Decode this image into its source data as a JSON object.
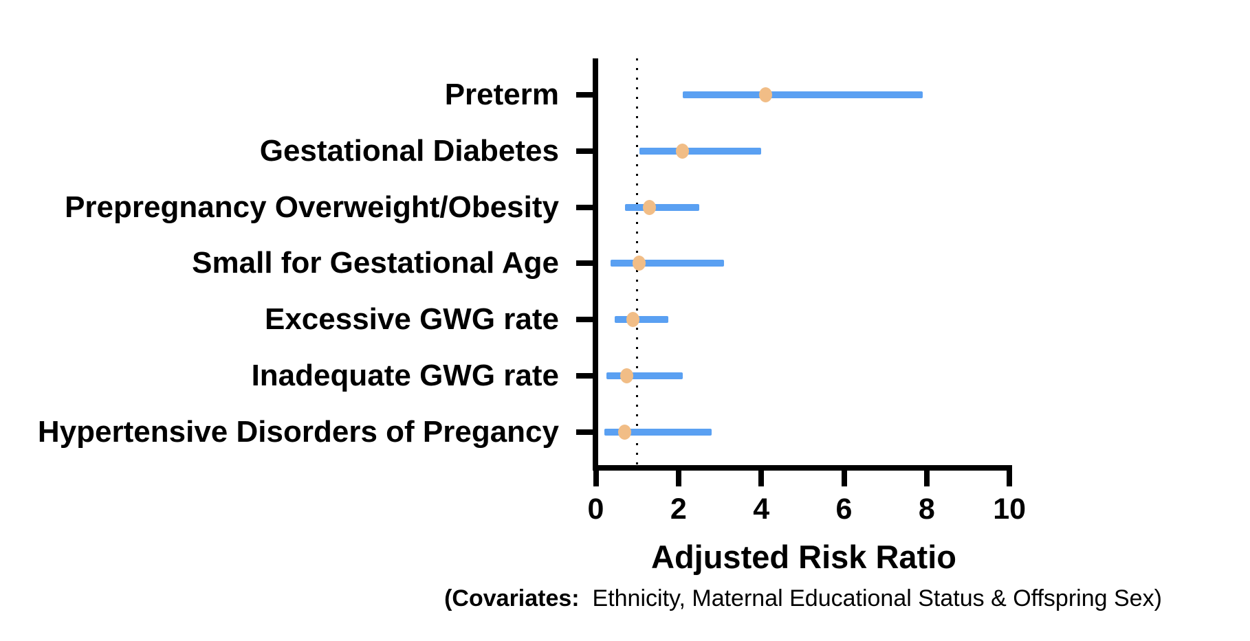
{
  "chart_data": {
    "type": "scatter",
    "variant": "forest-plot",
    "orientation": "horizontal",
    "title": "",
    "xlabel": "Adjusted Risk Ratio",
    "footnote_bold": "(Covariates:",
    "footnote_regular": "  Ethnicity, Maternal Educational Status & Offspring Sex)",
    "categories": [
      "Preterm",
      "Gestational Diabetes",
      "Prepregnancy Overweight/Obesity",
      "Small for Gestational Age",
      "Excessive GWG rate",
      "Inadequate GWG rate",
      "Hypertensive Disorders of Pregancy"
    ],
    "points": [
      {
        "category": "Preterm",
        "estimate": 4.1,
        "ci_low": 2.1,
        "ci_high": 7.9
      },
      {
        "category": "Gestational Diabetes",
        "estimate": 2.1,
        "ci_low": 1.05,
        "ci_high": 4.0
      },
      {
        "category": "Prepregnancy Overweight/Obesity",
        "estimate": 1.3,
        "ci_low": 0.7,
        "ci_high": 2.5
      },
      {
        "category": "Small for Gestational Age",
        "estimate": 1.05,
        "ci_low": 0.35,
        "ci_high": 3.1
      },
      {
        "category": "Excessive GWG rate",
        "estimate": 0.9,
        "ci_low": 0.45,
        "ci_high": 1.75
      },
      {
        "category": "Inadequate GWG rate",
        "estimate": 0.75,
        "ci_low": 0.25,
        "ci_high": 2.1
      },
      {
        "category": "Hypertensive Disorders of Pregancy",
        "estimate": 0.7,
        "ci_low": 0.2,
        "ci_high": 2.8
      }
    ],
    "xlim": [
      0,
      10
    ],
    "xticks": [
      0,
      2,
      4,
      6,
      8,
      10
    ],
    "reference_line_x": 1,
    "grid": false,
    "legend": "none",
    "colors": {
      "ci_bar": "#5AA0F2",
      "point": "#F1BD86",
      "axis": "#000000",
      "reference_line": "#000000",
      "background": "#FFFFFF",
      "text": "#000000"
    }
  }
}
